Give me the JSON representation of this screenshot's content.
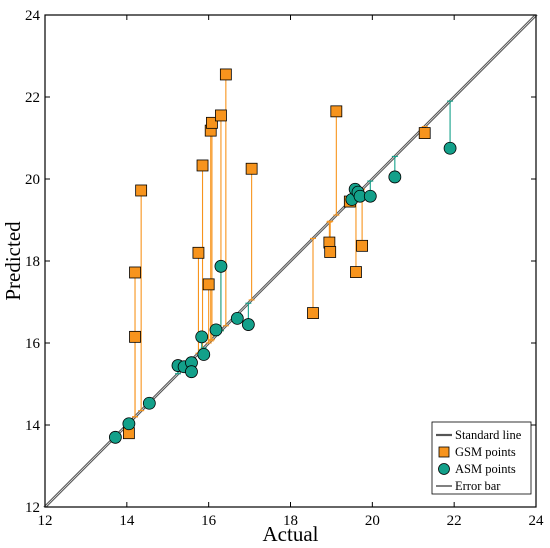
{
  "chart_data": {
    "type": "scatter",
    "xlabel": "Actual",
    "ylabel": "Predicted",
    "xlim": [
      12,
      24
    ],
    "ylim": [
      12,
      24
    ],
    "xticks": [
      "12",
      "14",
      "16",
      "18",
      "20",
      "22",
      "24"
    ],
    "yticks": [
      "12",
      "14",
      "16",
      "18",
      "20",
      "22",
      "24"
    ],
    "grid": false,
    "legend_position": "bottom-right",
    "colors": {
      "standard_line": "#555555",
      "gsm_fill": "#f7941d",
      "gsm_error": "#f7941d",
      "asm_fill": "#13a08a",
      "asm_error": "#13a08a"
    },
    "legend": {
      "standard_line": "Standard line",
      "gsm": "GSM points",
      "asm": "ASM points",
      "error_bar": "Error bar"
    },
    "standard_line": {
      "x": [
        12,
        24
      ],
      "y": [
        12,
        24
      ]
    },
    "series": [
      {
        "name": "GSM points",
        "marker": "square",
        "points": [
          {
            "x": 14.05,
            "y": 13.8
          },
          {
            "x": 14.2,
            "y": 16.15
          },
          {
            "x": 14.2,
            "y": 17.72
          },
          {
            "x": 14.35,
            "y": 19.72
          },
          {
            "x": 15.75,
            "y": 18.2
          },
          {
            "x": 15.85,
            "y": 20.33
          },
          {
            "x": 16.0,
            "y": 17.43
          },
          {
            "x": 16.05,
            "y": 21.18
          },
          {
            "x": 16.08,
            "y": 21.37
          },
          {
            "x": 16.3,
            "y": 21.55
          },
          {
            "x": 16.42,
            "y": 22.55
          },
          {
            "x": 17.05,
            "y": 20.25
          },
          {
            "x": 18.55,
            "y": 16.73
          },
          {
            "x": 18.95,
            "y": 18.45
          },
          {
            "x": 18.97,
            "y": 18.22
          },
          {
            "x": 19.12,
            "y": 21.65
          },
          {
            "x": 19.45,
            "y": 19.45
          },
          {
            "x": 19.6,
            "y": 17.73
          },
          {
            "x": 19.75,
            "y": 18.37
          },
          {
            "x": 21.28,
            "y": 21.12
          }
        ]
      },
      {
        "name": "ASM points",
        "marker": "circle",
        "points": [
          {
            "x": 13.72,
            "y": 13.7
          },
          {
            "x": 14.05,
            "y": 14.03
          },
          {
            "x": 14.55,
            "y": 14.53
          },
          {
            "x": 15.25,
            "y": 15.45
          },
          {
            "x": 15.4,
            "y": 15.42
          },
          {
            "x": 15.58,
            "y": 15.52
          },
          {
            "x": 15.58,
            "y": 15.3
          },
          {
            "x": 15.83,
            "y": 16.15
          },
          {
            "x": 15.88,
            "y": 15.72
          },
          {
            "x": 16.18,
            "y": 16.32
          },
          {
            "x": 16.3,
            "y": 17.87
          },
          {
            "x": 16.7,
            "y": 16.6
          },
          {
            "x": 16.97,
            "y": 16.45
          },
          {
            "x": 19.5,
            "y": 19.5
          },
          {
            "x": 19.58,
            "y": 19.75
          },
          {
            "x": 19.65,
            "y": 19.68
          },
          {
            "x": 19.7,
            "y": 19.58
          },
          {
            "x": 19.95,
            "y": 19.58
          },
          {
            "x": 20.55,
            "y": 20.05
          },
          {
            "x": 21.9,
            "y": 20.75
          }
        ]
      }
    ]
  }
}
